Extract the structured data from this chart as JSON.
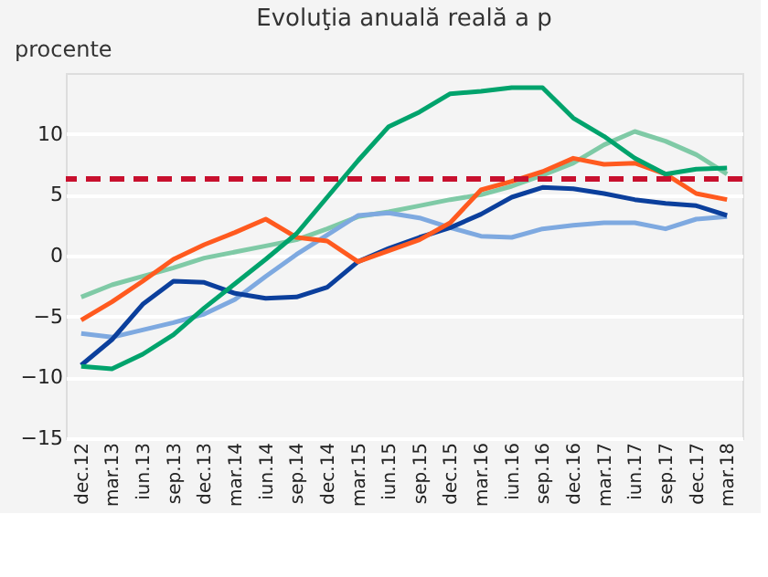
{
  "chart_data": {
    "type": "line",
    "title": "Evoluţia anuală reală a p",
    "ylabel": "procente",
    "categories": [
      "dec.12",
      "mar.13",
      "iun.13",
      "sep.13",
      "dec.13",
      "mar.14",
      "iun.14",
      "sep.14",
      "dec.14",
      "mar.15",
      "iun.15",
      "sep.15",
      "dec.15",
      "mar.16",
      "iun.16",
      "sep.16",
      "dec.16",
      "mar.17",
      "iun.17",
      "sep.17",
      "dec.17",
      "mar.18"
    ],
    "series": [
      {
        "color": "#7fcaa6",
        "values": [
          -3.4,
          -2.4,
          -1.7,
          -1.0,
          -0.2,
          0.3,
          0.8,
          1.3,
          2.2,
          3.2,
          3.6,
          4.1,
          4.6,
          5.0,
          5.7,
          6.6,
          7.6,
          9.1,
          10.2,
          9.4,
          8.3,
          6.7
        ]
      },
      {
        "color": "#7ea9e0",
        "values": [
          -6.4,
          -6.7,
          -6.1,
          -5.5,
          -4.8,
          -3.6,
          -1.7,
          0.1,
          1.7,
          3.3,
          3.5,
          3.1,
          2.3,
          1.6,
          1.5,
          2.2,
          2.5,
          2.7,
          2.7,
          2.2,
          3.0,
          3.2
        ]
      },
      {
        "color": "#0b3f9c",
        "values": [
          -9.0,
          -6.9,
          -4.0,
          -2.1,
          -2.2,
          -3.1,
          -3.5,
          -3.4,
          -2.6,
          -0.5,
          0.6,
          1.5,
          2.3,
          3.4,
          4.8,
          5.6,
          5.5,
          5.1,
          4.6,
          4.3,
          4.1,
          3.3
        ]
      },
      {
        "color": "#ff5a1f",
        "values": [
          -5.3,
          -3.8,
          -2.1,
          -0.3,
          0.9,
          1.9,
          3.0,
          1.5,
          1.2,
          -0.5,
          0.4,
          1.3,
          2.7,
          5.4,
          6.1,
          6.9,
          8.0,
          7.5,
          7.6,
          6.7,
          5.1,
          4.6
        ]
      },
      {
        "color": "#00a36c",
        "values": [
          -9.1,
          -9.3,
          -8.1,
          -6.5,
          -4.3,
          -2.3,
          -0.3,
          1.8,
          4.8,
          7.8,
          10.6,
          11.8,
          13.3,
          13.5,
          13.8,
          13.8,
          11.3,
          9.8,
          8.0,
          6.7,
          7.1,
          7.2
        ]
      }
    ],
    "ref_lines": [
      {
        "axis": "y",
        "value": 6.3,
        "color": "#c8102e",
        "line_style": "dashed"
      }
    ],
    "ylim": [
      -15,
      15
    ],
    "yticks": [
      -15,
      -10,
      -5,
      0,
      5,
      10
    ],
    "grid": "y",
    "line_style": "solid",
    "marker": "none"
  }
}
